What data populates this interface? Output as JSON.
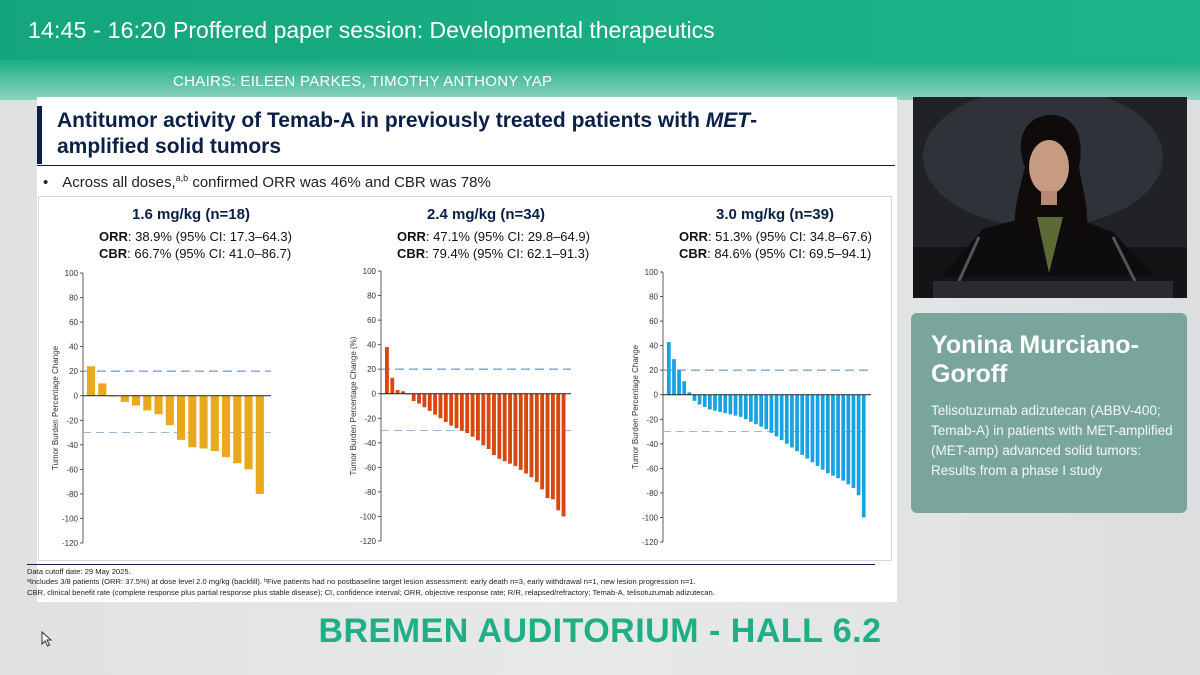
{
  "session": {
    "time": "14:45 - 16:20",
    "title": "Proffered paper session: Developmental therapeutics",
    "chairs": "CHAIRS: EILEEN PARKES, TIMOTHY ANTHONY YAP"
  },
  "slide": {
    "title_line1_pre": "Antitumor activity of Temab-A in previously treated patients with ",
    "title_line1_italic": "MET",
    "title_line1_post": "-",
    "title_line2": "amplified solid tumors",
    "bullet_symbol": "•",
    "bullet_pre": "Across all doses,",
    "bullet_sup": "a,b",
    "bullet_post": " confirmed ORR was 46% and CBR was 78%",
    "footnotes": {
      "line1": "Data cutoff date: 29 May 2025.",
      "line2": "ᵃIncludes 3/8 patients (ORR: 37.5%) at dose level 2.0 mg/kg (backfill). ᵇFive patients had no postbaseline target lesion assessment: early death n=3, early withdrawal n=1, new lesion progression n=1.",
      "line3": "CBR, clinical benefit rate (complete response plus partial response plus stable disease); CI, confidence interval; ORR, objective response rate; R/R, relapsed/refractory; Temab-A, telisotuzumab adizutecan."
    }
  },
  "speaker": {
    "name": "Yonina Murciano-Goroff",
    "talk_title": "Telisotuzumab adizutecan (ABBV-400; Temab-A) in patients with MET-amplified (MET-amp) advanced solid tumors: Results from a phase I study"
  },
  "venue": "BREMEN AUDITORIUM - HALL 6.2",
  "colors": {
    "header_bg": "#17a77e",
    "accent_green": "#1faf84",
    "speaker_card": "#7aa59c",
    "slide_navy": "#0b1f47",
    "dose1": "#e8a91c",
    "dose2": "#d9470e",
    "dose3": "#17a2e3",
    "reference_line": "#4e7fc4"
  },
  "chart_data": [
    {
      "type": "bar",
      "title": "1.6 mg/kg (n=18)",
      "orr_label": "ORR",
      "orr_text": ": 38.9% (95% CI: 17.3–64.3)",
      "cbr_label": "CBR",
      "cbr_text": ": 66.7% (95% CI: 41.0–86.7)",
      "ylabel": "Tumor Burden Percentage Change",
      "ylim": [
        -120,
        100
      ],
      "yticks": [
        "100",
        "80",
        "60",
        "40",
        "20",
        "0",
        "-20",
        "-40",
        "-60",
        "-80",
        "-100",
        "-120"
      ],
      "reference_lines": [
        20,
        -30
      ],
      "values": [
        24,
        10,
        0,
        -5,
        -8,
        -12,
        -15,
        -24,
        -36,
        -42,
        -43,
        -45,
        -50,
        -55,
        -60,
        -80
      ]
    },
    {
      "type": "bar",
      "title": "2.4 mg/kg (n=34)",
      "orr_label": "ORR",
      "orr_text": ": 47.1% (95% CI: 29.8–64.9)",
      "cbr_label": "CBR",
      "cbr_text": ": 79.4% (95% CI: 62.1–91.3)",
      "ylabel": "Tumor Burden Percentage Change (%)",
      "ylim": [
        -120,
        100
      ],
      "yticks": [
        "100",
        "80",
        "60",
        "40",
        "20",
        "0",
        "-20",
        "-40",
        "-60",
        "-80",
        "-100",
        "-120"
      ],
      "reference_lines": [
        20,
        -30
      ],
      "values": [
        38,
        13,
        3,
        2,
        0,
        -6,
        -8,
        -11,
        -14,
        -17,
        -20,
        -23,
        -26,
        -28,
        -30,
        -32,
        -35,
        -38,
        -42,
        -45,
        -50,
        -53,
        -55,
        -57,
        -59,
        -62,
        -65,
        -68,
        -72,
        -78,
        -85,
        -86,
        -95,
        -100
      ]
    },
    {
      "type": "bar",
      "title": "3.0 mg/kg (n=39)",
      "orr_label": "ORR",
      "orr_text": ": 51.3% (95% CI: 34.8–67.6)",
      "cbr_label": "CBR",
      "cbr_text": ": 84.6% (95% CI: 69.5–94.1)",
      "ylabel": "Tumor Burden Percentage Change",
      "ylim": [
        -120,
        100
      ],
      "yticks": [
        "100",
        "80",
        "60",
        "40",
        "20",
        "0",
        "-20",
        "-40",
        "-60",
        "-80",
        "-100",
        "-120"
      ],
      "reference_lines": [
        20,
        -30
      ],
      "values": [
        43,
        29,
        20,
        11,
        2,
        -5,
        -8,
        -10,
        -12,
        -13,
        -14,
        -15,
        -16,
        -17,
        -18,
        -20,
        -22,
        -24,
        -26,
        -28,
        -31,
        -34,
        -37,
        -40,
        -43,
        -46,
        -49,
        -52,
        -55,
        -58,
        -61,
        -64,
        -66,
        -68,
        -70,
        -73,
        -76,
        -82,
        -100
      ]
    }
  ]
}
